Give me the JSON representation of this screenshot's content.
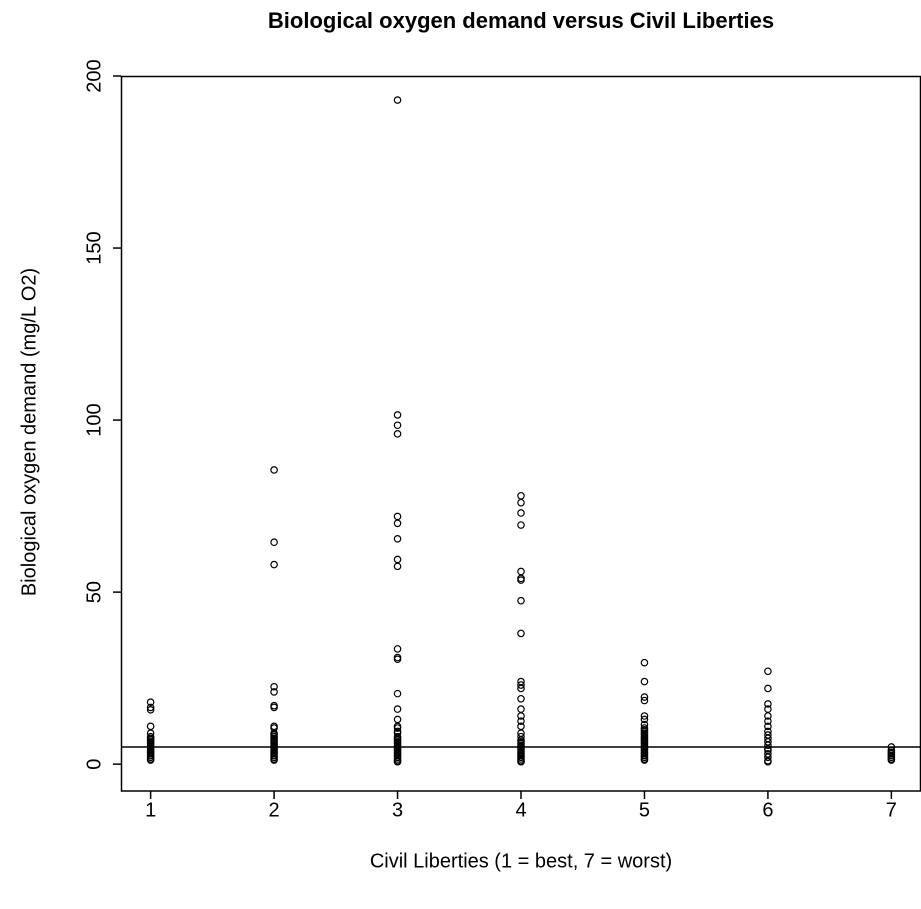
{
  "chart_data": {
    "type": "scatter",
    "title": "Biological oxygen demand versus Civil Liberties",
    "xlabel": "Civil Liberties (1 = best, 7 = worst)",
    "ylabel": "Biological oxygen demand (mg/L O2)",
    "x": [
      1,
      1,
      1,
      1,
      1,
      1,
      1,
      1,
      1,
      1,
      1,
      1,
      1,
      1,
      1,
      1,
      1,
      1,
      1,
      1,
      2,
      2,
      2,
      2,
      2,
      2,
      2,
      2,
      2,
      2,
      2,
      2,
      2,
      2,
      2,
      2,
      2,
      2,
      2,
      2,
      2,
      2,
      2,
      2,
      2,
      2,
      3,
      3,
      3,
      3,
      3,
      3,
      3,
      3,
      3,
      3,
      3,
      3,
      3,
      3,
      3,
      3,
      3,
      3,
      3,
      3,
      3,
      3,
      3,
      3,
      3,
      3,
      3,
      3,
      3,
      3,
      3,
      3,
      3,
      3,
      3,
      4,
      4,
      4,
      4,
      4,
      4,
      4,
      4,
      4,
      4,
      4,
      4,
      4,
      4,
      4,
      4,
      4,
      4,
      4,
      4,
      4,
      4,
      4,
      4,
      4,
      4,
      4,
      4,
      4,
      4,
      4,
      4,
      4,
      5,
      5,
      5,
      5,
      5,
      5,
      5,
      5,
      5,
      5,
      5,
      5,
      5,
      5,
      5,
      5,
      5,
      5,
      5,
      5,
      5,
      5,
      5,
      5,
      5,
      5,
      5,
      6,
      6,
      6,
      6,
      6,
      6,
      6,
      6,
      6,
      6,
      6,
      6,
      6,
      6,
      6,
      6,
      6,
      6,
      7,
      7,
      7,
      7,
      7,
      7,
      7,
      7
    ],
    "values": [
      18,
      16.5,
      15.8,
      11,
      9,
      8,
      7.5,
      7,
      6.5,
      6,
      5.5,
      5,
      4.5,
      4,
      3.5,
      3,
      2.5,
      2,
      1.5,
      1.2,
      85.5,
      64.5,
      58,
      22.5,
      21,
      17,
      16.5,
      11,
      10.5,
      9,
      8.5,
      8,
      7.5,
      7,
      6.5,
      6,
      5.5,
      5,
      4.5,
      4,
      3.5,
      3,
      2.5,
      2,
      1.5,
      1.2,
      193,
      101.5,
      98.5,
      96,
      72,
      70,
      65.5,
      59.5,
      57.5,
      33.5,
      31,
      30.5,
      20.5,
      16,
      13,
      11,
      10.5,
      9.5,
      9,
      8,
      7.5,
      7,
      6.5,
      6,
      5.5,
      5,
      4.5,
      4,
      3.5,
      3,
      2.5,
      2,
      1.5,
      1,
      0.7,
      78,
      76,
      73,
      69.5,
      56,
      54,
      53.5,
      47.5,
      38,
      24,
      23,
      22,
      19,
      16,
      14,
      12.5,
      11,
      9,
      8,
      7,
      6.5,
      6,
      5.5,
      5,
      4.5,
      4,
      3.5,
      3,
      2.5,
      2,
      1.5,
      1,
      0.7,
      29.5,
      24,
      19.5,
      18.5,
      14,
      13,
      11.5,
      10.5,
      10,
      9.5,
      9,
      8.5,
      8,
      7.5,
      7,
      6.5,
      6,
      5.5,
      5,
      4.5,
      4,
      3.5,
      3,
      2.5,
      2,
      1.5,
      1.2,
      27,
      22,
      17.5,
      16,
      14,
      12.5,
      11,
      9.5,
      8.5,
      7.5,
      6.5,
      5.5,
      4.5,
      4,
      3,
      2,
      1,
      0.7,
      5,
      4,
      3.5,
      3,
      2.5,
      2,
      1.5,
      1.2
    ],
    "color": "#000000",
    "hline": 5,
    "xlim": [
      0.76,
      7.24
    ],
    "xticks": [
      1,
      2,
      3,
      4,
      5,
      6,
      7
    ],
    "ylim": [
      -7.8,
      200
    ],
    "yticks": [
      0,
      50,
      100,
      150,
      200
    ]
  }
}
